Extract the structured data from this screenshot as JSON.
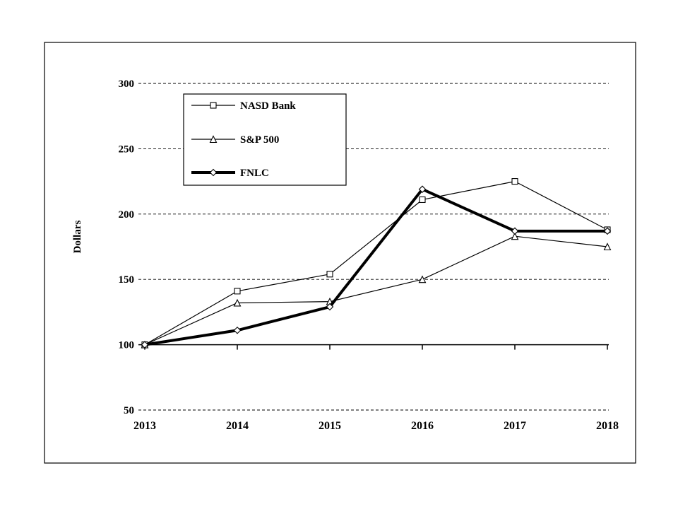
{
  "page": {
    "background": "#ffffff",
    "frame_color": "#000000"
  },
  "chart_data": {
    "type": "line",
    "title": "",
    "xlabel": "",
    "ylabel": "Dollars",
    "x": [
      "2013",
      "2014",
      "2015",
      "2016",
      "2017",
      "2018"
    ],
    "ylim": [
      50,
      300
    ],
    "yticks": [
      50,
      100,
      150,
      200,
      250,
      300
    ],
    "x_axis_position": 100,
    "grid": "horizontal-dashed",
    "legend_position": "upper-left-inside",
    "line_color": "#000000",
    "series": [
      {
        "name": "NASD Bank",
        "marker": "square",
        "line_width": 1.2,
        "values": [
          100,
          141,
          154,
          211,
          225,
          188
        ]
      },
      {
        "name": "S&P 500",
        "marker": "triangle",
        "line_width": 1.2,
        "values": [
          100,
          132,
          133,
          150,
          183,
          175
        ]
      },
      {
        "name": "FNLC",
        "marker": "diamond",
        "line_width": 4,
        "values": [
          100,
          111,
          129,
          219,
          187,
          187
        ]
      }
    ]
  }
}
